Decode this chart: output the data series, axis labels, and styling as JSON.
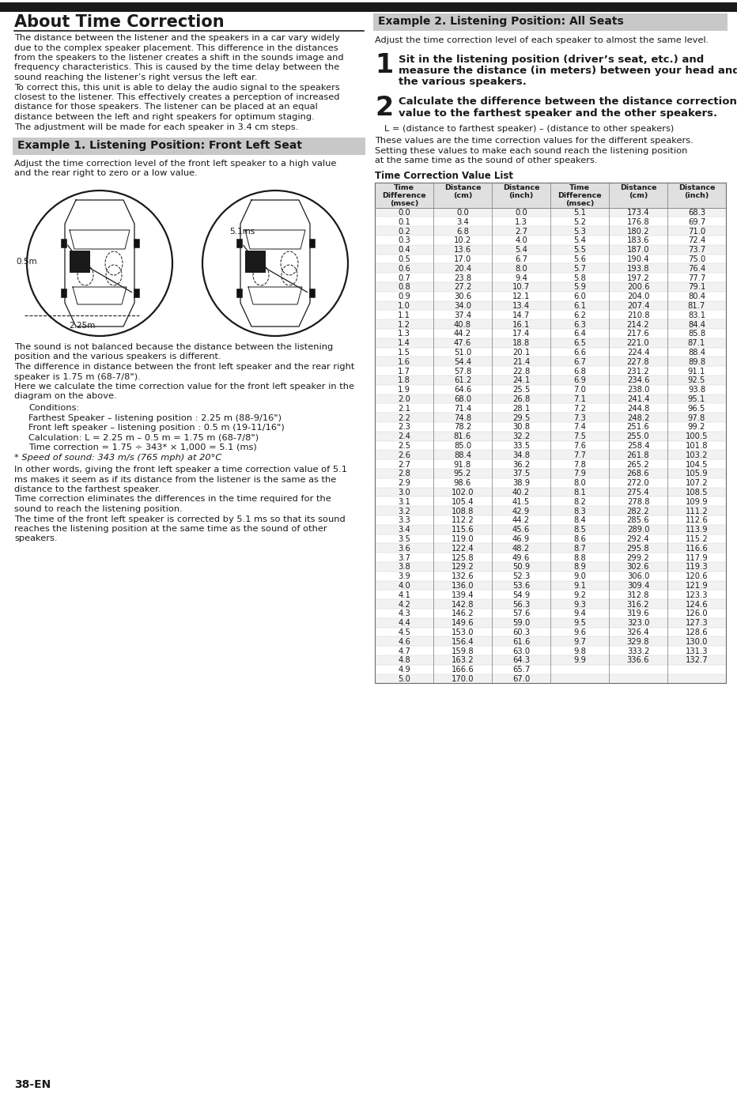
{
  "bg_color": "#ffffff",
  "text_color": "#1a1a1a",
  "page_number": "38-EN",
  "title_main": "About Time Correction",
  "section1_title": "Example 1. Listening Position: Front Left Seat",
  "section1_bg": "#c8c8c8",
  "section2_title": "Example 2. Listening Position: All Seats",
  "section2_bg": "#c8c8c8",
  "main_text_lines": [
    "The distance between the listener and the speakers in a car vary widely",
    "due to the complex speaker placement. This difference in the distances",
    "from the speakers to the listener creates a shift in the sounds image and",
    "frequency characteristics. This is caused by the time delay between the",
    "sound reaching the listener’s right versus the left ear.",
    "To correct this, this unit is able to delay the audio signal to the speakers",
    "closest to the listener. This effectively creates a perception of increased",
    "distance for those speakers. The listener can be placed at an equal",
    "distance between the left and right speakers for optimum staging.",
    "The adjustment will be made for each speaker in 3.4 cm steps."
  ],
  "ex1_text1_lines": [
    "Adjust the time correction level of the front left speaker to a high value",
    "and the rear right to zero or a low value."
  ],
  "ex1_text2_lines": [
    "The sound is not balanced because the distance between the listening",
    "position and the various speakers is different.",
    "The difference in distance between the front left speaker and the rear right",
    "speaker is 1.75 m (68-7/8\").",
    "Here we calculate the time correction value for the front left speaker in the",
    "diagram on the above."
  ],
  "conditions_lines": [
    "Conditions:",
    "Farthest Speaker – listening position : 2.25 m (88-9/16\")",
    "Front left speaker – listening position : 0.5 m (19-11/16\")",
    "Calculation: L = 2.25 m – 0.5 m = 1.75 m (68-7/8\")",
    "Time correction = 1.75 ÷ 343* × 1,000 = 5.1 (ms)"
  ],
  "asterisk_text": "* Speed of sound: 343 m/s (765 mph) at 20°C",
  "ex1_text3_lines": [
    "In other words, giving the front left speaker a time correction value of 5.1",
    "ms makes it seem as if its distance from the listener is the same as the",
    "distance to the farthest speaker.",
    "Time correction eliminates the differences in the time required for the",
    "sound to reach the listening position.",
    "The time of the front left speaker is corrected by 5.1 ms so that its sound",
    "reaches the listening position at the same time as the sound of other",
    "speakers."
  ],
  "ex2_text1": "Adjust the time correction level of each speaker to almost the same level.",
  "step1_num": "1",
  "step1_lines": [
    "Sit in the listening position (driver’s seat, etc.) and",
    "measure the distance (in meters) between your head and",
    "the various speakers."
  ],
  "step2_num": "2",
  "step2_lines": [
    "Calculate the difference between the distance correction",
    "value to the farthest speaker and the other speakers."
  ],
  "step2_formula": "L = (distance to farthest speaker) – (distance to other speakers)",
  "step2_text2_lines": [
    "These values are the time correction values for the different speakers.",
    "Setting these values to make each sound reach the listening position",
    "at the same time as the sound of other speakers."
  ],
  "table_title": "Time Correction Value List",
  "table_headers": [
    "Time\nDifference\n(msec)",
    "Distance\n(cm)",
    "Distance\n(inch)",
    "Time\nDifference\n(msec)",
    "Distance\n(cm)",
    "Distance\n(inch)"
  ],
  "table_data_col1": [
    0.0,
    0.1,
    0.2,
    0.3,
    0.4,
    0.5,
    0.6,
    0.7,
    0.8,
    0.9,
    1.0,
    1.1,
    1.2,
    1.3,
    1.4,
    1.5,
    1.6,
    1.7,
    1.8,
    1.9,
    2.0,
    2.1,
    2.2,
    2.3,
    2.4,
    2.5,
    2.6,
    2.7,
    2.8,
    2.9,
    3.0,
    3.1,
    3.2,
    3.3,
    3.4,
    3.5,
    3.6,
    3.7,
    3.8,
    3.9,
    4.0,
    4.1,
    4.2,
    4.3,
    4.4,
    4.5,
    4.6,
    4.7,
    4.8,
    4.9,
    5.0
  ],
  "table_data_col2": [
    0.0,
    3.4,
    6.8,
    10.2,
    13.6,
    17.0,
    20.4,
    23.8,
    27.2,
    30.6,
    34.0,
    37.4,
    40.8,
    44.2,
    47.6,
    51.0,
    54.4,
    57.8,
    61.2,
    64.6,
    68.0,
    71.4,
    74.8,
    78.2,
    81.6,
    85.0,
    88.4,
    91.8,
    95.2,
    98.6,
    102.0,
    105.4,
    108.8,
    112.2,
    115.6,
    119.0,
    122.4,
    125.8,
    129.2,
    132.6,
    136.0,
    139.4,
    142.8,
    146.2,
    149.6,
    153.0,
    156.4,
    159.8,
    163.2,
    166.6,
    170.0
  ],
  "table_data_col3": [
    0.0,
    1.3,
    2.7,
    4.0,
    5.4,
    6.7,
    8.0,
    9.4,
    10.7,
    12.1,
    13.4,
    14.7,
    16.1,
    17.4,
    18.8,
    20.1,
    21.4,
    22.8,
    24.1,
    25.5,
    26.8,
    28.1,
    29.5,
    30.8,
    32.2,
    33.5,
    34.8,
    36.2,
    37.5,
    38.9,
    40.2,
    41.5,
    42.9,
    44.2,
    45.6,
    46.9,
    48.2,
    49.6,
    50.9,
    52.3,
    53.6,
    54.9,
    56.3,
    57.6,
    59.0,
    60.3,
    61.6,
    63.0,
    64.3,
    65.7,
    67.0
  ],
  "table_data_col4": [
    5.1,
    5.2,
    5.3,
    5.4,
    5.5,
    5.6,
    5.7,
    5.8,
    5.9,
    6.0,
    6.1,
    6.2,
    6.3,
    6.4,
    6.5,
    6.6,
    6.7,
    6.8,
    6.9,
    7.0,
    7.1,
    7.2,
    7.3,
    7.4,
    7.5,
    7.6,
    7.7,
    7.8,
    7.9,
    8.0,
    8.1,
    8.2,
    8.3,
    8.4,
    8.5,
    8.6,
    8.7,
    8.8,
    8.9,
    9.0,
    9.1,
    9.2,
    9.3,
    9.4,
    9.5,
    9.6,
    9.7,
    9.8,
    9.9,
    null,
    null
  ],
  "table_data_col5": [
    173.4,
    176.8,
    180.2,
    183.6,
    187.0,
    190.4,
    193.8,
    197.2,
    200.6,
    204.0,
    207.4,
    210.8,
    214.2,
    217.6,
    221.0,
    224.4,
    227.8,
    231.2,
    234.6,
    238.0,
    241.4,
    244.8,
    248.2,
    251.6,
    255.0,
    258.4,
    261.8,
    265.2,
    268.6,
    272.0,
    275.4,
    278.8,
    282.2,
    285.6,
    289.0,
    292.4,
    295.8,
    299.2,
    302.6,
    306.0,
    309.4,
    312.8,
    316.2,
    319.6,
    323.0,
    326.4,
    329.8,
    333.2,
    336.6,
    null,
    null
  ],
  "table_data_col6": [
    68.3,
    69.7,
    71.0,
    72.4,
    73.7,
    75.0,
    76.4,
    77.7,
    79.1,
    80.4,
    81.7,
    83.1,
    84.4,
    85.8,
    87.1,
    88.4,
    89.8,
    91.1,
    92.5,
    93.8,
    95.1,
    96.5,
    97.8,
    99.2,
    100.5,
    101.8,
    103.2,
    104.5,
    105.9,
    107.2,
    108.5,
    109.9,
    111.2,
    112.6,
    113.9,
    115.2,
    116.6,
    117.9,
    119.3,
    120.6,
    121.9,
    123.3,
    124.6,
    126.0,
    127.3,
    128.6,
    130.0,
    131.3,
    132.7,
    null,
    null
  ]
}
